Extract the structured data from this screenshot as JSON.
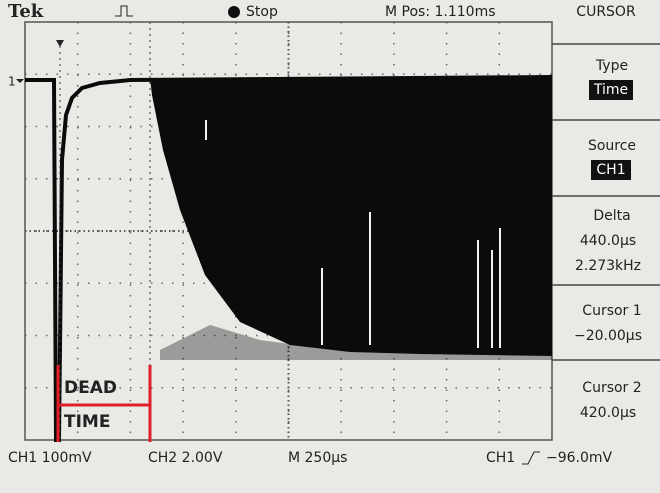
{
  "header": {
    "brand": "Tek",
    "status": "Stop",
    "position": "M Pos: 1.110ms"
  },
  "menu": {
    "title": "CURSOR",
    "items": [
      {
        "label": "Type",
        "values": [
          "Time"
        ]
      },
      {
        "label": "Source",
        "values": [
          "CH1"
        ]
      },
      {
        "label": "Delta",
        "values": [
          "440.0µs",
          "2.273kHz"
        ]
      },
      {
        "label": "Cursor 1",
        "values": [
          "−20.00µs"
        ]
      },
      {
        "label": "Cursor 2",
        "values": [
          "420.0µs"
        ]
      }
    ]
  },
  "channel_marker": "1",
  "annotation": [
    "DEAD",
    "TIME"
  ],
  "footer": {
    "ch1": "CH1 100mV",
    "ch2": "CH2 2.00V",
    "timebase": "M 250µs",
    "trigger_source": "CH1",
    "trigger_level": "−96.0mV"
  }
}
